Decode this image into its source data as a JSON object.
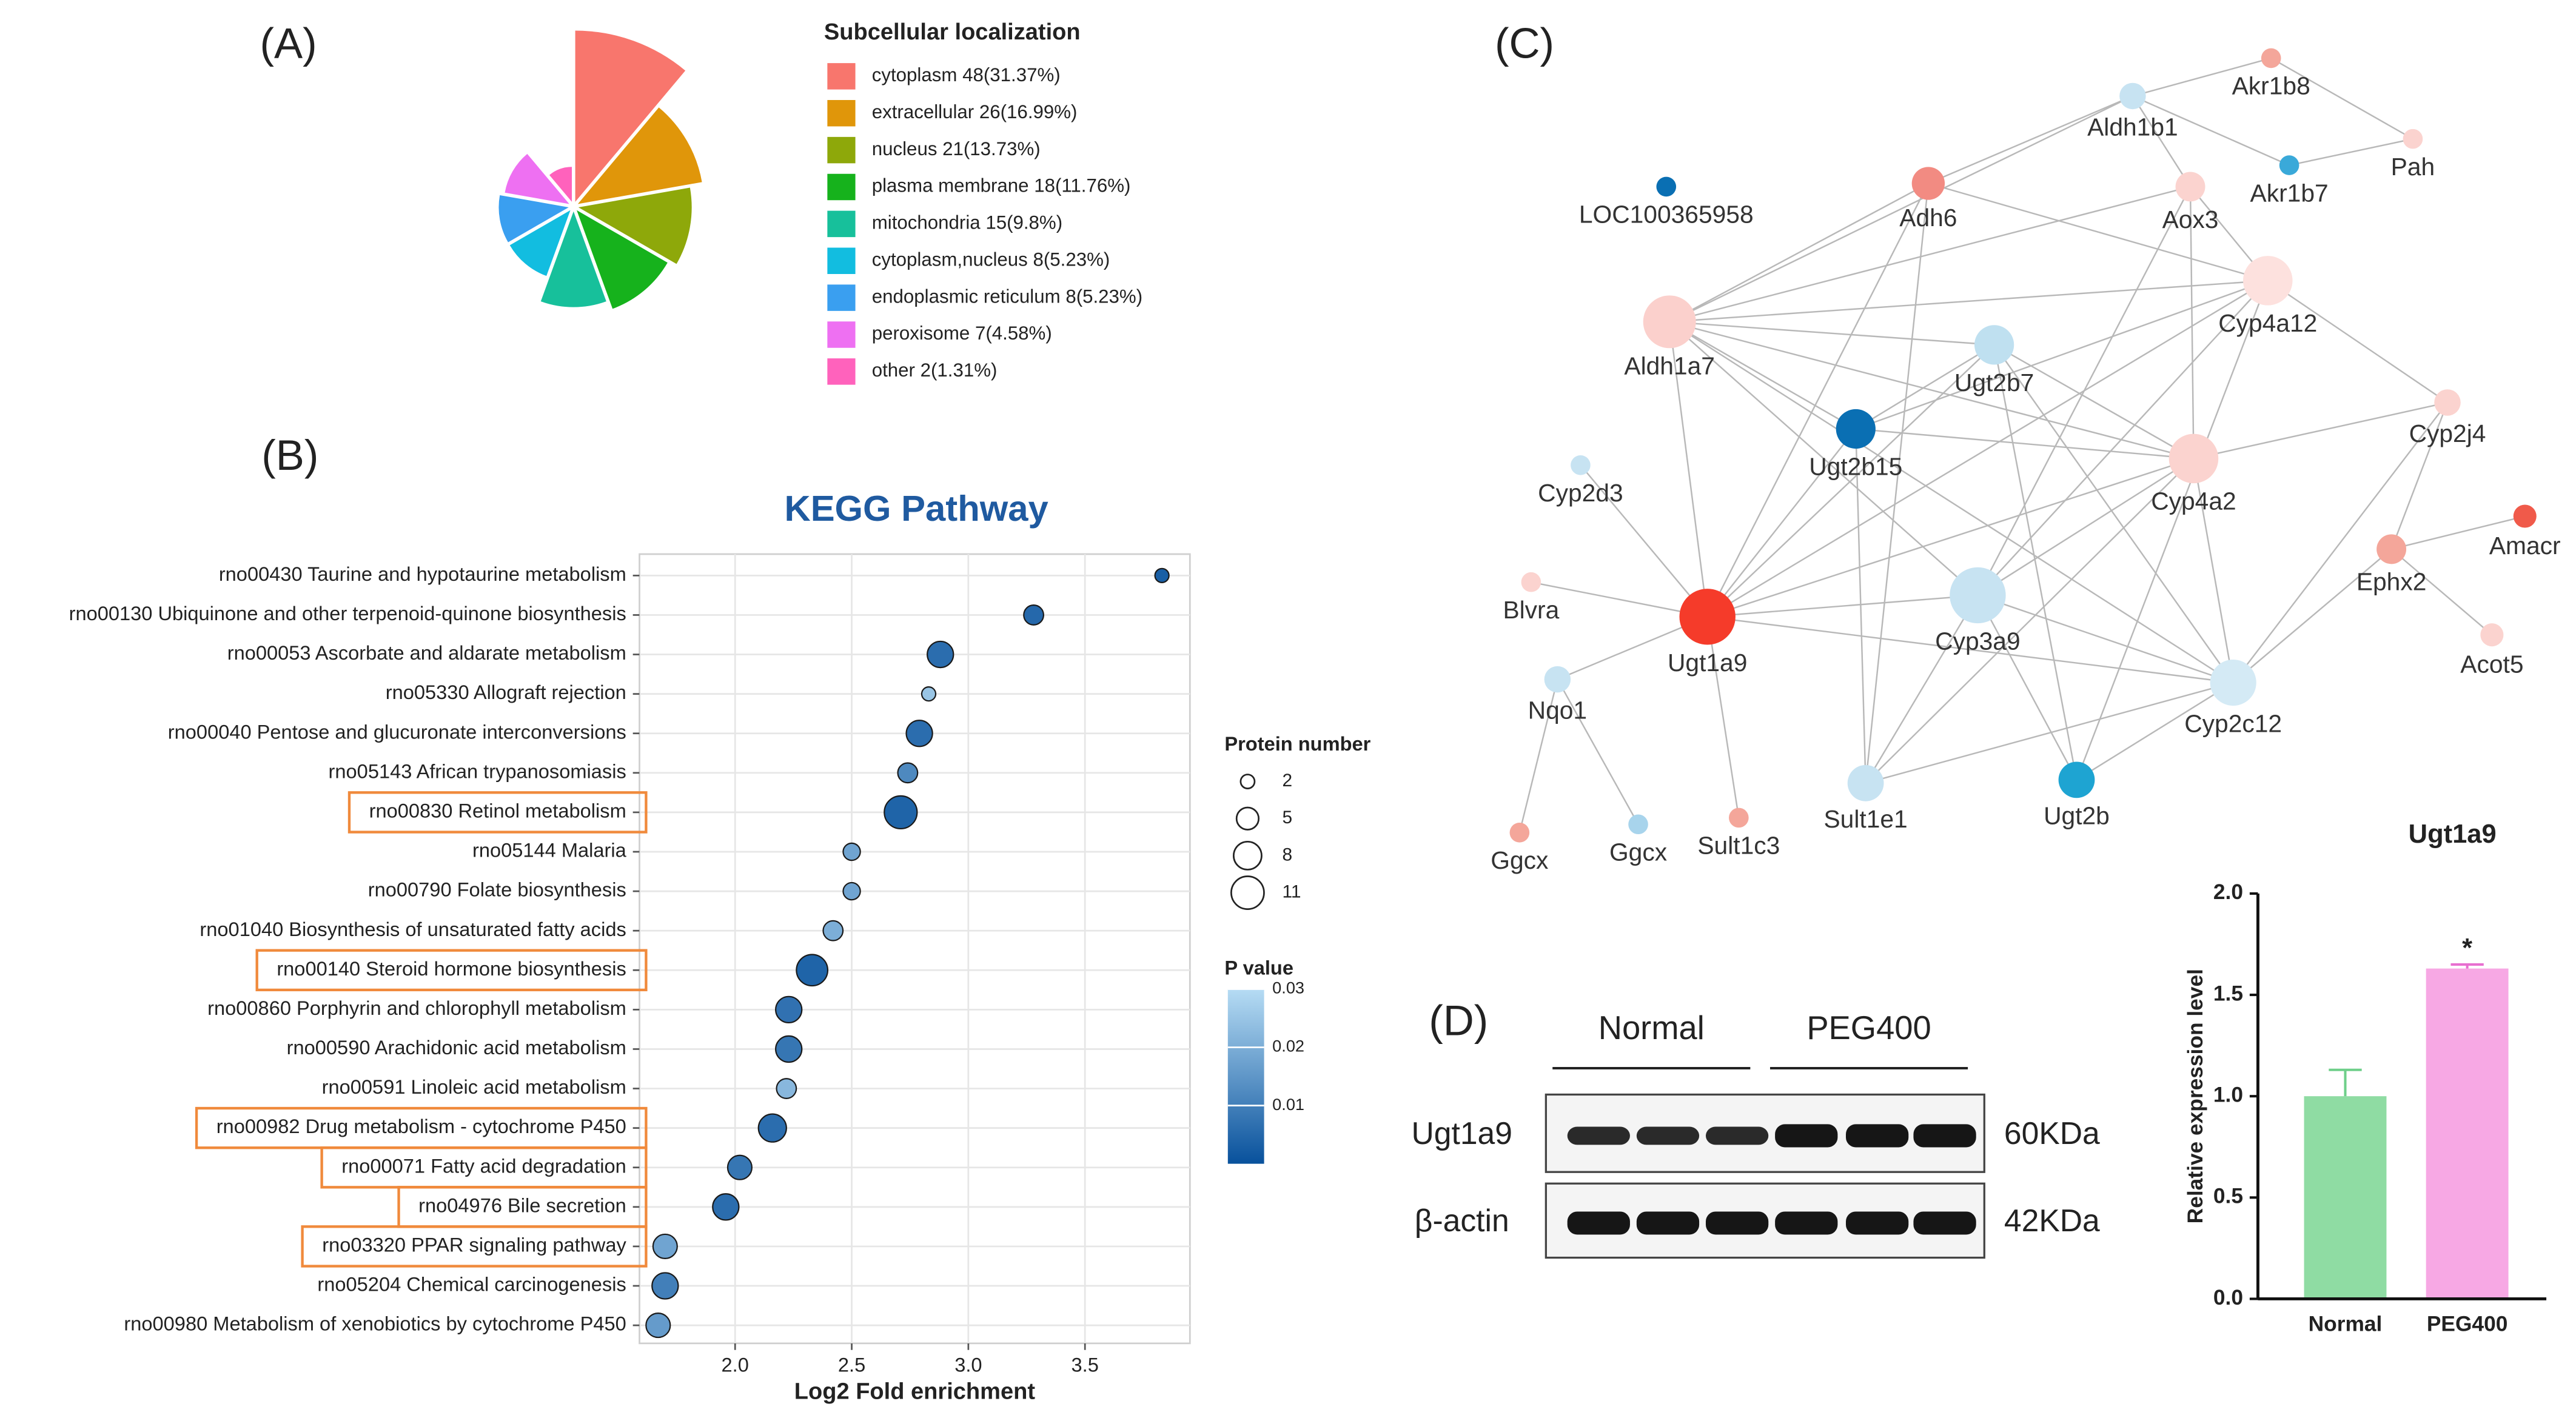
{
  "panel_labels": [
    "(A)",
    "(B)",
    "(C)",
    "(D)"
  ],
  "chart_data": [
    {
      "type": "rose",
      "title": "Subcellular localization",
      "categories": [
        "cytoplasm 48(31.37%)",
        "extracellular 26(16.99%)",
        "nucleus 21(13.73%)",
        "plasma membrane 18(11.76%)",
        "mitochondria 15(9.8%)",
        "cytoplasm,nucleus 8(5.23%)",
        "endoplasmic reticulum 8(5.23%)",
        "peroxisome 7(4.58%)",
        "other 2(1.31%)"
      ],
      "values": [
        48,
        26,
        21,
        18,
        15,
        8,
        8,
        7,
        2
      ],
      "colors": [
        "#f8766d",
        "#e0960a",
        "#8ea80a",
        "#16b21c",
        "#17c09b",
        "#12bde0",
        "#3a9ff0",
        "#ee70f2",
        "#ff62bc"
      ]
    },
    {
      "type": "bubble",
      "title": "KEGG Pathway",
      "xlabel": "Log2 Fold enrichment",
      "categories": [
        "rno00430 Taurine and hypotaurine metabolism",
        "rno00130 Ubiquinone and other terpenoid-quinone biosynthesis",
        "rno00053 Ascorbate and aldarate metabolism",
        "rno05330 Allograft rejection",
        "rno00040 Pentose and glucuronate interconversions",
        "rno05143 African trypanosomiasis",
        "rno00830 Retinol metabolism",
        "rno05144 Malaria",
        "rno00790 Folate biosynthesis",
        "rno01040 Biosynthesis of unsaturated fatty acids",
        "rno00140 Steroid hormone biosynthesis",
        "rno00860 Porphyrin and chlorophyll metabolism",
        "rno00590 Arachidonic acid metabolism",
        "rno00591 Linoleic acid metabolism",
        "rno00982 Drug metabolism - cytochrome P450",
        "rno00071 Fatty acid degradation",
        "rno04976 Bile secretion",
        "rno03320 PPAR signaling pathway",
        "rno05204 Chemical carcinogenesis",
        "rno00980 Metabolism of xenobiotics by cytochrome P450"
      ],
      "values": [
        3.83,
        3.28,
        2.88,
        2.83,
        2.79,
        2.74,
        2.71,
        2.5,
        2.5,
        2.42,
        2.33,
        2.23,
        2.23,
        2.22,
        2.16,
        2.02,
        1.96,
        1.7,
        1.7,
        1.67
      ],
      "sizes": [
        2,
        4,
        7,
        2,
        7,
        4,
        11,
        3,
        3,
        4,
        10,
        7,
        7,
        4,
        8,
        6,
        7,
        6,
        7,
        6
      ],
      "pvalues": [
        0.003,
        0.005,
        0.006,
        0.025,
        0.006,
        0.012,
        0.004,
        0.018,
        0.018,
        0.02,
        0.004,
        0.007,
        0.008,
        0.022,
        0.006,
        0.008,
        0.006,
        0.018,
        0.01,
        0.016
      ],
      "xlim": [
        1.59,
        3.95
      ],
      "xticks": [
        {
          "value": 2,
          "label": "2.0"
        },
        2.5,
        {
          "value": 3,
          "label": "3.0"
        },
        3.5
      ],
      "grid": true,
      "size_legend": {
        "title": "Protein number",
        "values": [
          2,
          5,
          8,
          11
        ]
      },
      "color_legend": {
        "title": "P value",
        "lim": [
          0,
          0.03
        ],
        "ticks": [
          0.01,
          0.02,
          0.03
        ],
        "colors": [
          "#08519c",
          "#b6dcf4"
        ]
      },
      "highlight": [
        6,
        10,
        14,
        15,
        16,
        17
      ],
      "highlight_color": "#f08a3c"
    },
    {
      "type": "network",
      "nodes": [
        {
          "label": "Akr1b8",
          "color": "#f4a69a"
        },
        {
          "label": "Aldh1b1",
          "color": "#c7e3f2"
        },
        {
          "label": "Pah",
          "color": "#fbd3cf"
        },
        {
          "label": "Akr1b7",
          "color": "#3aa9d9"
        },
        {
          "label": "LOC100365958",
          "color": "#0a6fb3"
        },
        {
          "label": "Adh6",
          "color": "#f28b82"
        },
        {
          "label": "Aox3",
          "color": "#fbd3cf"
        },
        {
          "label": "Aldh1a7",
          "color": "#fbd0cc"
        },
        {
          "label": "Ugt2b7",
          "color": "#bfe0f0"
        },
        {
          "label": "Cyp4a12",
          "color": "#fde1de"
        },
        {
          "label": "Ugt2b15",
          "color": "#0a6fb3"
        },
        {
          "label": "Cyp2j4",
          "color": "#fbd3cf"
        },
        {
          "label": "Cyp2d3",
          "color": "#c7e3f2"
        },
        {
          "label": "Cyp4a2",
          "color": "#fbd3cf"
        },
        {
          "label": "Amacr",
          "color": "#f05a4a"
        },
        {
          "label": "Ephx2",
          "color": "#f4a69a"
        },
        {
          "label": "Blvra",
          "color": "#fbd3cf"
        },
        {
          "label": "Ugt1a9",
          "color": "#f53b2a"
        },
        {
          "label": "Cyp3a9",
          "color": "#c7e3f2"
        },
        {
          "label": "Acot5",
          "color": "#fbd3cf"
        },
        {
          "label": "Nqo1",
          "color": "#c7e3f2"
        },
        {
          "label": "Cyp2c12",
          "color": "#d4eaf5"
        },
        {
          "label": "Sult1e1",
          "color": "#c7e3f2"
        },
        {
          "label": "Ugt2b",
          "color": "#1ea4d2"
        },
        {
          "label": "Ggcx",
          "color": "#f4a69a"
        },
        {
          "label": "Ggcx",
          "color": "#a8d4ec"
        },
        {
          "label": "Sult1c3",
          "color": "#f4a69a"
        }
      ],
      "edges": [
        [
          0,
          1
        ],
        [
          0,
          2
        ],
        [
          1,
          3
        ],
        [
          2,
          3
        ],
        [
          1,
          5
        ],
        [
          1,
          6
        ],
        [
          1,
          7
        ],
        [
          5,
          7
        ],
        [
          5,
          17
        ],
        [
          5,
          22
        ],
        [
          5,
          9
        ],
        [
          6,
          7
        ],
        [
          6,
          13
        ],
        [
          6,
          9
        ],
        [
          6,
          18
        ],
        [
          7,
          8
        ],
        [
          7,
          9
        ],
        [
          7,
          10
        ],
        [
          7,
          13
        ],
        [
          7,
          17
        ],
        [
          7,
          18
        ],
        [
          7,
          21
        ],
        [
          8,
          10
        ],
        [
          8,
          13
        ],
        [
          8,
          17
        ],
        [
          8,
          23
        ],
        [
          8,
          21
        ],
        [
          9,
          10
        ],
        [
          9,
          17
        ],
        [
          9,
          18
        ],
        [
          9,
          23
        ],
        [
          9,
          11
        ],
        [
          10,
          13
        ],
        [
          10,
          22
        ],
        [
          10,
          17
        ],
        [
          11,
          13
        ],
        [
          11,
          15
        ],
        [
          11,
          21
        ],
        [
          13,
          17
        ],
        [
          13,
          18
        ],
        [
          13,
          21
        ],
        [
          13,
          22
        ],
        [
          15,
          14
        ],
        [
          15,
          19
        ],
        [
          15,
          21
        ],
        [
          17,
          12
        ],
        [
          17,
          16
        ],
        [
          17,
          20
        ],
        [
          17,
          26
        ],
        [
          17,
          18
        ],
        [
          17,
          21
        ],
        [
          18,
          22
        ],
        [
          18,
          23
        ],
        [
          18,
          21
        ],
        [
          20,
          24
        ],
        [
          20,
          25
        ],
        [
          21,
          23
        ],
        [
          21,
          22
        ]
      ]
    },
    {
      "type": "blot",
      "groups": [
        "Normal",
        "PEG400"
      ],
      "rows": [
        {
          "label": "Ugt1a9",
          "size": "60KDa"
        },
        {
          "label": "β-actin",
          "size": "42KDa"
        }
      ]
    },
    {
      "type": "bar",
      "title": "Ugt1a9",
      "ylabel": "Relative expression level",
      "categories": [
        "Normal",
        "PEG400"
      ],
      "values": [
        1.0,
        1.63
      ],
      "errors": [
        0.13,
        0.02
      ],
      "colors": [
        "#8fdca3",
        "#f7a8e4"
      ],
      "error_colors": [
        "#6fcf8a",
        "#e86fd0"
      ],
      "ylim": [
        0,
        2
      ],
      "yticks": [
        {
          "value": 0,
          "label": "0.0"
        },
        0.5,
        {
          "value": 1,
          "label": "1.0"
        },
        1.5,
        {
          "value": 2,
          "label": "2.0"
        }
      ],
      "annotations": [
        {
          "text": "*",
          "category": 1
        }
      ]
    }
  ]
}
